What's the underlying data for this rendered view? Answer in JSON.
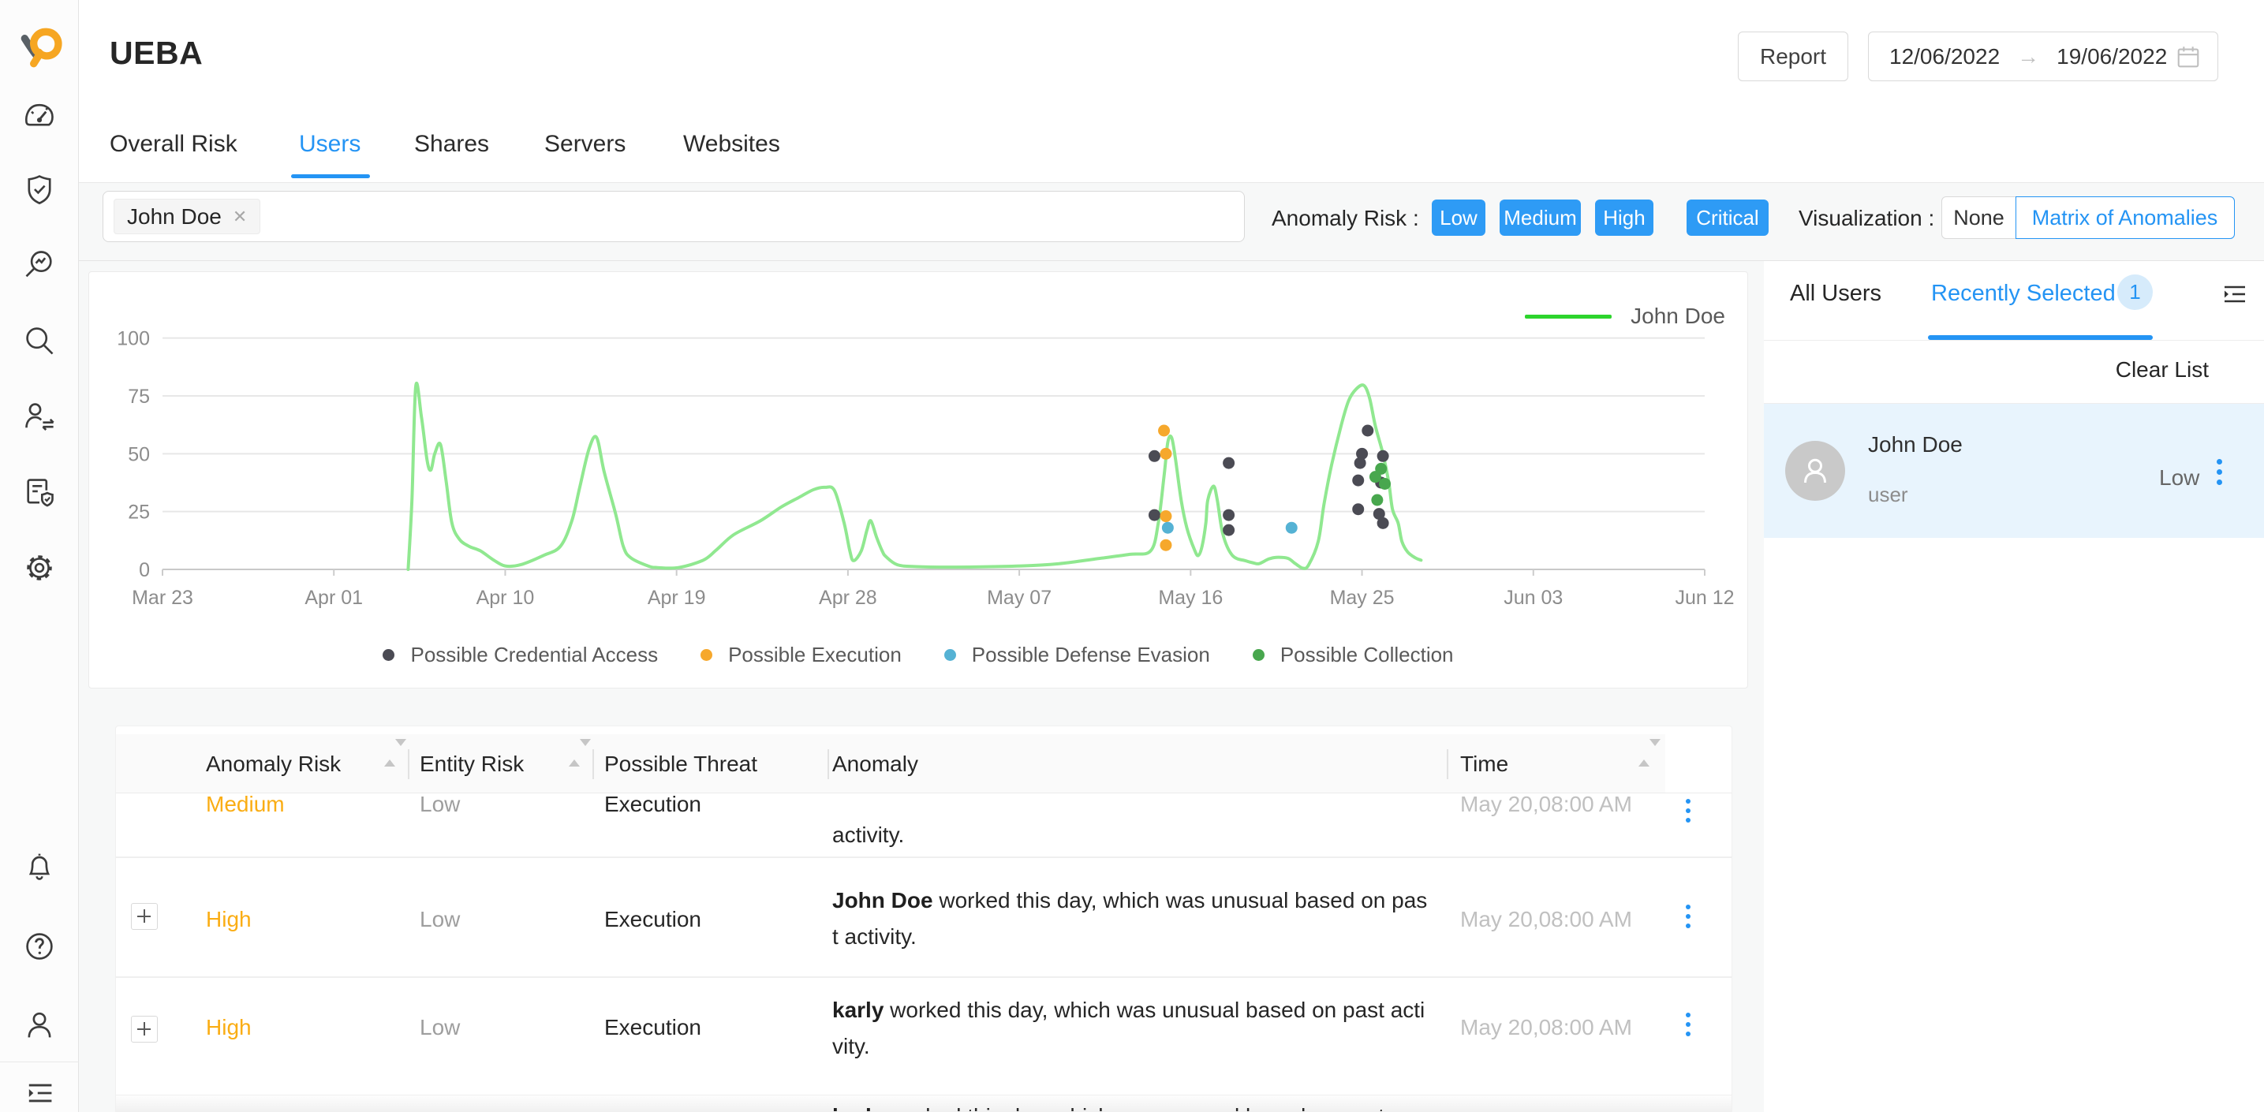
{
  "app": {
    "title": "UEBA"
  },
  "header": {
    "report_button": "Report",
    "date_range": {
      "start": "12/06/2022",
      "end": "19/06/2022"
    }
  },
  "tabs": {
    "items": [
      {
        "label": "Overall Risk",
        "active": false
      },
      {
        "label": "Users",
        "active": true
      },
      {
        "label": "Shares",
        "active": false
      },
      {
        "label": "Servers",
        "active": false
      },
      {
        "label": "Websites",
        "active": false
      }
    ]
  },
  "filters": {
    "selected_chip": "John Doe",
    "anomaly_risk_label": "Anomaly Risk :",
    "risk_buttons": [
      "Low",
      "Medium",
      "High",
      "Critical"
    ],
    "visualization_label": "Visualization :",
    "visualization_options": [
      {
        "label": "None",
        "selected": false
      },
      {
        "label": "Matrix of Anomalies",
        "selected": true
      }
    ]
  },
  "chart_data": {
    "type": "line+scatter",
    "x_ticks": [
      "Mar 23",
      "Apr 01",
      "Apr 10",
      "Apr 19",
      "Apr 28",
      "May 07",
      "May 16",
      "May 25",
      "Jun 03",
      "Jun 12"
    ],
    "x_tick_days": [
      0,
      9,
      18,
      27,
      36,
      45,
      54,
      63,
      72,
      81
    ],
    "x_span_days": 81,
    "y_ticks": [
      0,
      25,
      50,
      75,
      100
    ],
    "ylim": [
      0,
      100
    ],
    "grid": true,
    "legend_position": "top-right",
    "series": [
      {
        "name": "John Doe",
        "color": "#90e890",
        "points": [
          [
            12.9,
            0
          ],
          [
            13.1,
            30
          ],
          [
            13.3,
            79
          ],
          [
            13.6,
            66
          ],
          [
            13.9,
            47
          ],
          [
            14.1,
            43
          ],
          [
            14.3,
            50
          ],
          [
            14.6,
            54
          ],
          [
            14.9,
            38
          ],
          [
            15.2,
            20
          ],
          [
            15.6,
            13
          ],
          [
            16.1,
            10
          ],
          [
            16.7,
            8
          ],
          [
            17.4,
            4
          ],
          [
            18.0,
            1.5
          ],
          [
            18.8,
            2
          ],
          [
            20.0,
            6
          ],
          [
            20.9,
            10
          ],
          [
            21.5,
            21
          ],
          [
            21.9,
            35
          ],
          [
            22.4,
            52
          ],
          [
            22.8,
            57
          ],
          [
            23.2,
            42
          ],
          [
            23.8,
            24
          ],
          [
            24.2,
            10
          ],
          [
            24.6,
            5
          ],
          [
            25.5,
            1.5
          ],
          [
            26.0,
            0.8
          ],
          [
            27.1,
            0.8
          ],
          [
            28.4,
            4
          ],
          [
            29.1,
            8.5
          ],
          [
            30.0,
            15
          ],
          [
            31.4,
            21
          ],
          [
            32.5,
            27
          ],
          [
            33.4,
            31
          ],
          [
            34.2,
            34.5
          ],
          [
            34.8,
            35.5
          ],
          [
            35.3,
            34
          ],
          [
            35.8,
            20
          ],
          [
            36.1,
            8
          ],
          [
            36.3,
            3.8
          ],
          [
            36.7,
            8
          ],
          [
            37.0,
            17
          ],
          [
            37.2,
            21
          ],
          [
            37.5,
            14
          ],
          [
            37.8,
            8
          ],
          [
            38.0,
            5.5
          ],
          [
            38.6,
            2
          ],
          [
            39.6,
            1.2
          ],
          [
            41.7,
            1
          ],
          [
            45.1,
            1.5
          ],
          [
            47.1,
            2.5
          ],
          [
            48.9,
            4.4
          ],
          [
            50.8,
            6.5
          ],
          [
            51.9,
            8
          ],
          [
            52.3,
            20
          ],
          [
            52.6,
            40
          ],
          [
            52.8,
            55
          ],
          [
            53.0,
            57
          ],
          [
            53.2,
            48
          ],
          [
            53.5,
            30
          ],
          [
            53.8,
            18
          ],
          [
            54.2,
            8.5
          ],
          [
            54.4,
            6
          ],
          [
            54.6,
            10
          ],
          [
            54.8,
            20
          ],
          [
            54.9,
            30
          ],
          [
            55.2,
            36
          ],
          [
            55.4,
            30
          ],
          [
            55.7,
            15
          ],
          [
            56.2,
            6
          ],
          [
            56.9,
            3.7
          ],
          [
            57.3,
            2.8
          ],
          [
            57.6,
            2.5
          ],
          [
            58.1,
            4.5
          ],
          [
            58.5,
            5.2
          ],
          [
            59.1,
            4.8
          ],
          [
            59.5,
            2.5
          ],
          [
            59.9,
            0.5
          ],
          [
            60.2,
            2
          ],
          [
            60.7,
            12
          ],
          [
            61.0,
            28
          ],
          [
            61.4,
            45
          ],
          [
            61.9,
            62
          ],
          [
            62.3,
            73
          ],
          [
            62.7,
            78
          ],
          [
            63.1,
            79.5
          ],
          [
            63.4,
            74
          ],
          [
            63.7,
            62
          ],
          [
            64.1,
            50
          ],
          [
            64.4,
            38
          ],
          [
            64.6,
            26
          ],
          [
            64.9,
            20
          ],
          [
            65.1,
            12
          ],
          [
            65.4,
            7.5
          ],
          [
            65.8,
            5
          ],
          [
            66.1,
            4
          ]
        ]
      }
    ],
    "scatter_groups": [
      {
        "name": "Possible Credential Access",
        "color": "#4b4b54",
        "points": [
          [
            52.1,
            49
          ],
          [
            52.1,
            23.5
          ],
          [
            56.0,
            46
          ],
          [
            56.0,
            23.5
          ],
          [
            56.0,
            17
          ],
          [
            63.3,
            60
          ],
          [
            63.0,
            50
          ],
          [
            64.1,
            49
          ],
          [
            62.9,
            46
          ],
          [
            62.8,
            38.5
          ],
          [
            64.0,
            37.5
          ],
          [
            62.8,
            26
          ],
          [
            63.9,
            24
          ],
          [
            64.1,
            20
          ]
        ]
      },
      {
        "name": "Possible Execution",
        "color": "#f6a82c",
        "points": [
          [
            52.6,
            60
          ],
          [
            52.7,
            50
          ],
          [
            52.7,
            23
          ],
          [
            52.7,
            10.5
          ]
        ]
      },
      {
        "name": "Possible Defense Evasion",
        "color": "#55b2d4",
        "points": [
          [
            52.8,
            18
          ],
          [
            59.3,
            18
          ]
        ]
      },
      {
        "name": "Possible Collection",
        "color": "#48a74e",
        "points": [
          [
            64.0,
            43.5
          ],
          [
            63.7,
            40
          ],
          [
            64.2,
            37
          ],
          [
            63.8,
            30
          ]
        ]
      }
    ]
  },
  "user_panel": {
    "tabs": [
      {
        "label": "All Users",
        "active": false
      },
      {
        "label": "Recently Selected",
        "badge": "1",
        "active": true
      }
    ],
    "clear_list": "Clear List",
    "selected_users": [
      {
        "name": "John Doe",
        "type": "user",
        "risk": "Low"
      }
    ]
  },
  "table": {
    "headers": [
      "Anomaly Risk",
      "Entity Risk",
      "Possible Threat",
      "Anomaly",
      "Time"
    ],
    "rows": [
      {
        "expand": "+",
        "anomaly_risk": "Medium",
        "entity_risk": "Low",
        "possible_threat": "Execution",
        "anomaly_bold": "",
        "anomaly_line1": "",
        "anomaly_line2": "activity.",
        "time": "May 20,08:00 AM"
      },
      {
        "expand": "+",
        "anomaly_risk": "High",
        "entity_risk": "Low",
        "possible_threat": "Execution",
        "anomaly_bold": "John Doe",
        "anomaly_line1": " worked this day, which was unusual based on pas",
        "anomaly_line2": "t activity.",
        "time": "May 20,08:00 AM"
      },
      {
        "expand": "+",
        "anomaly_risk": "High",
        "entity_risk": "Low",
        "possible_threat": "Execution",
        "anomaly_bold": "karly",
        "anomaly_line1": " worked this day, which was unusual based on past acti",
        "anomaly_line2": "vity.",
        "time": "May 20,08:00 AM"
      },
      {
        "expand": "+",
        "anomaly_risk": "",
        "entity_risk": "",
        "possible_threat": "",
        "anomaly_bold": "karly",
        "anomaly_line1": " worked this day, which was unusual based on past",
        "anomaly_line2": "",
        "time": ""
      }
    ]
  },
  "colors": {
    "accent_blue": "#2494f4",
    "risk_orange": "#faad14",
    "line_green": "#90e890",
    "legend_green": "#2dd42d"
  },
  "sidebar": {
    "icons": [
      "logo",
      "dashboard",
      "security-shield",
      "anomaly-search",
      "search",
      "user-activity",
      "report",
      "settings",
      "notifications",
      "help",
      "profile",
      "collapse"
    ]
  }
}
